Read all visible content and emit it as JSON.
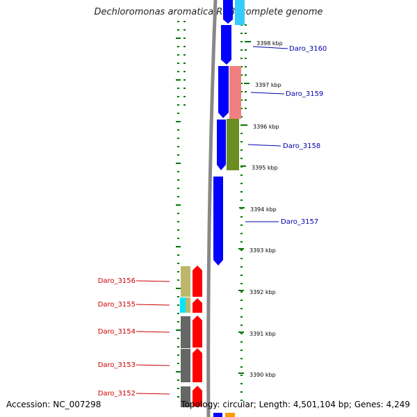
{
  "title": "Dechloromonas aromatica RCB, complete genome",
  "footer": {
    "accession": "Accession: NC_007298",
    "summary": "Topology: circular; Length: 4,501,104 bp; Genes: 4,249"
  },
  "colors": {
    "forward_strand_gene": "#0000ff",
    "reverse_strand_gene": "#ff0000",
    "forward_label": "#0000aa",
    "reverse_label": "#cc0000",
    "tick": "#007700",
    "backbone": "#888888"
  },
  "ruler_ticks": [
    "3398 kbp",
    "3397 kbp",
    "3396 kbp",
    "3395 kbp",
    "3394 kbp",
    "3393 kbp",
    "3392 kbp",
    "3391 kbp",
    "3390 kbp"
  ],
  "forward_genes": [
    "Daro_3160",
    "Daro_3159",
    "Daro_3158",
    "Daro_3157"
  ],
  "reverse_genes": [
    "Daro_3156",
    "Daro_3155",
    "Daro_3154",
    "Daro_3153",
    "Daro_3152"
  ]
}
